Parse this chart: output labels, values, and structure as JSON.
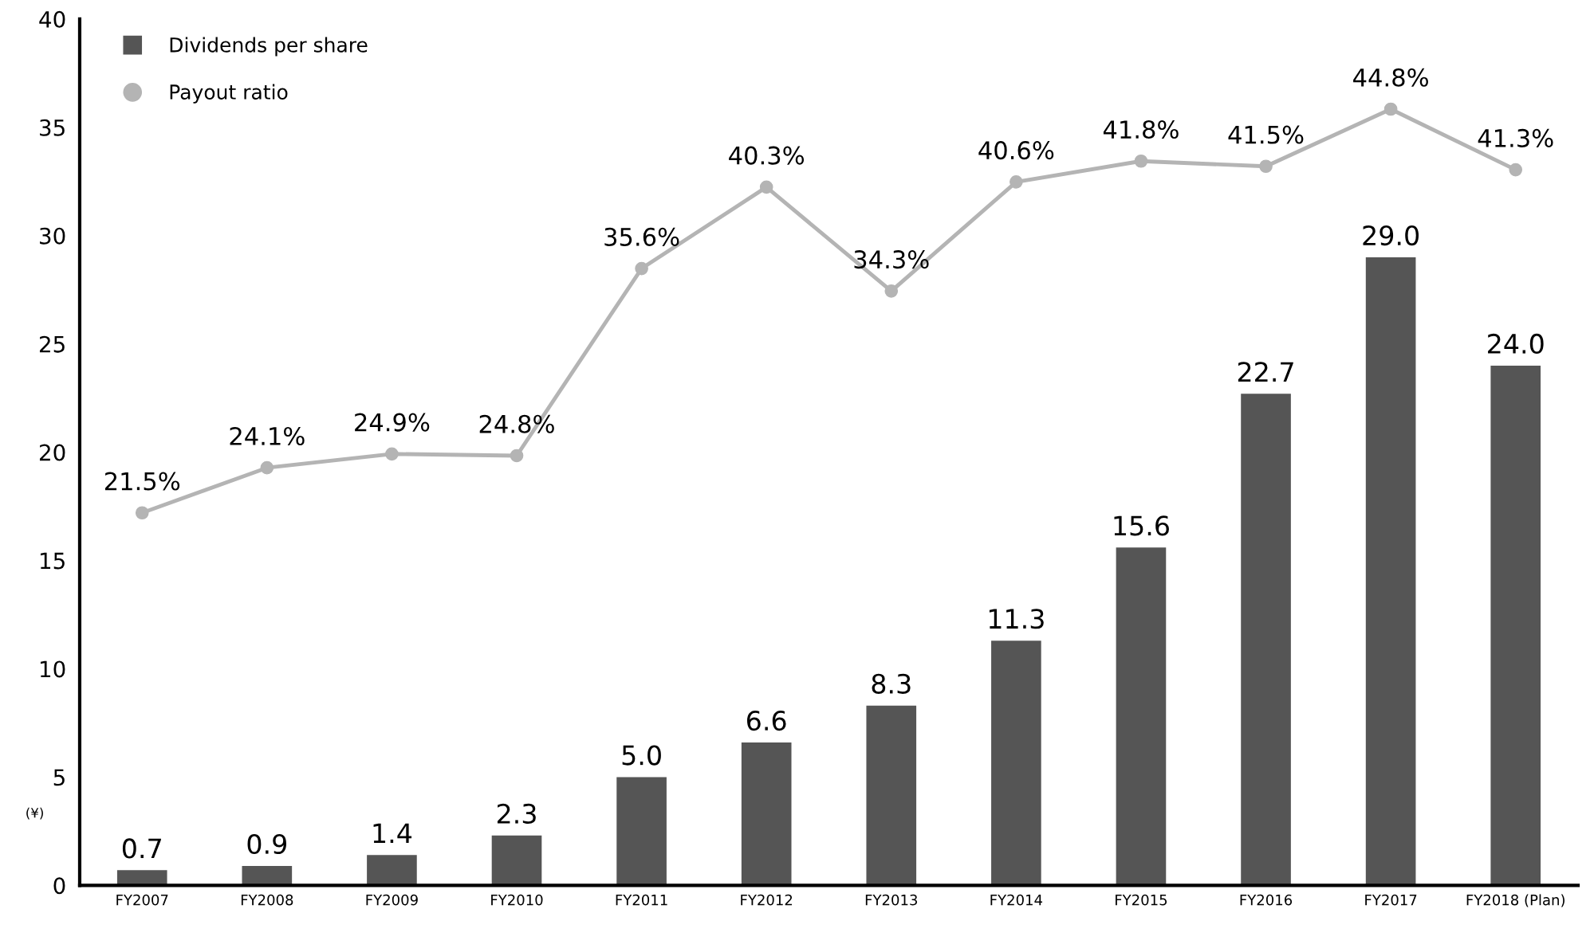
{
  "chart_data": {
    "type": "bar",
    "ylabel": "(¥)",
    "categories": [
      "FY2007",
      "FY2008",
      "FY2009",
      "FY2010",
      "FY2011",
      "FY2012",
      "FY2013",
      "FY2014",
      "FY2015",
      "FY2016",
      "FY2017",
      "FY2018 (Plan)"
    ],
    "series": [
      {
        "name": "Dividends per share",
        "color": "#555555",
        "values": [
          0.7,
          0.9,
          1.4,
          2.3,
          5.0,
          6.6,
          8.3,
          11.3,
          15.6,
          22.7,
          29.0,
          24.0
        ],
        "value_labels": [
          "0.7",
          "0.9",
          "1.4",
          "2.3",
          "5.0",
          "6.6",
          "8.3",
          "11.3",
          "15.6",
          "22.7",
          "29.0",
          "24.0"
        ]
      },
      {
        "name": "Payout ratio",
        "type": "line",
        "axis": "y2",
        "color": "#b4b4b4",
        "marker": "circle",
        "values": [
          21.5,
          24.1,
          24.9,
          24.8,
          35.6,
          40.3,
          34.3,
          40.6,
          41.8,
          41.5,
          44.8,
          41.3
        ],
        "value_labels": [
          "21.5%",
          "24.1%",
          "24.9%",
          "24.8%",
          "35.6%",
          "40.3%",
          "34.3%",
          "40.6%",
          "41.8%",
          "41.5%",
          "44.8%",
          "41.3%"
        ]
      }
    ],
    "ylim": [
      0,
      40
    ],
    "yticks": [
      0,
      5,
      10,
      15,
      20,
      25,
      30,
      35,
      40
    ],
    "y2lim": [
      0,
      50
    ],
    "tick_labels": "xy",
    "legend": "top left",
    "grid": false
  }
}
